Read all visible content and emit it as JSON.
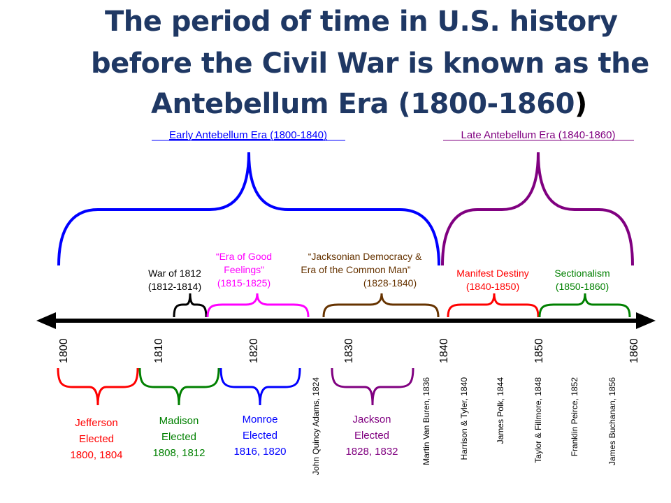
{
  "title": {
    "line1": "The period of time in U.S. history",
    "line2": "before the Civil War is known as the",
    "line3_main": "Antebellum Era (1800-1860",
    "line3_paren": ")"
  },
  "eras": {
    "early": "Early Antebellum Era (1800-1840)",
    "late": "Late Antebellum Era (1840-1860)"
  },
  "colors": {
    "title": "#1f3864",
    "early": "#0000ff",
    "late": "#800080",
    "war": "#000000",
    "good_feelings": "#ff00ff",
    "jacksonian": "#663300",
    "manifest": "#ff0000",
    "sectionalism": "#008000"
  },
  "periods": {
    "war_of_1812": {
      "line1": "War of 1812",
      "line2": "(1812-1814)"
    },
    "good_feelings": {
      "line1": "“Era of Good",
      "line2": "Feelings”",
      "line3": "(1815-1825)"
    },
    "jacksonian": {
      "line1": "“Jacksonian Democracy &",
      "line2": "Era of the Common Man”",
      "line3": "(1828-1840)"
    },
    "manifest_destiny": {
      "line1": "Manifest Destiny",
      "line2": "(1840-1850)"
    },
    "sectionalism": {
      "line1": "Sectionalism",
      "line2": "(1850-1860)"
    }
  },
  "axis": {
    "ticks": [
      "1800",
      "1810",
      "1820",
      "1830",
      "1840",
      "1850",
      "1860"
    ]
  },
  "presidents_bracketed": {
    "jefferson": {
      "line1": "Jefferson",
      "line2": "Elected",
      "line3": "1800, 1804"
    },
    "madison": {
      "line1": "Madison",
      "line2": "Elected",
      "line3": "1808, 1812"
    },
    "monroe": {
      "line1": "Monroe",
      "line2": "Elected",
      "line3": "1816, 1820"
    },
    "jackson": {
      "line1": "Jackson",
      "line2": "Elected",
      "line3": "1828, 1832"
    }
  },
  "presidents_vertical": [
    "John Quincy Adams, 1824",
    "Martin Van Buren, 1836",
    "Harrison & Tyler, 1840",
    "James Polk, 1844",
    "Taylor & Fillmore, 1848",
    "Franklin Peirce, 1852",
    "James Buchanan, 1856"
  ]
}
